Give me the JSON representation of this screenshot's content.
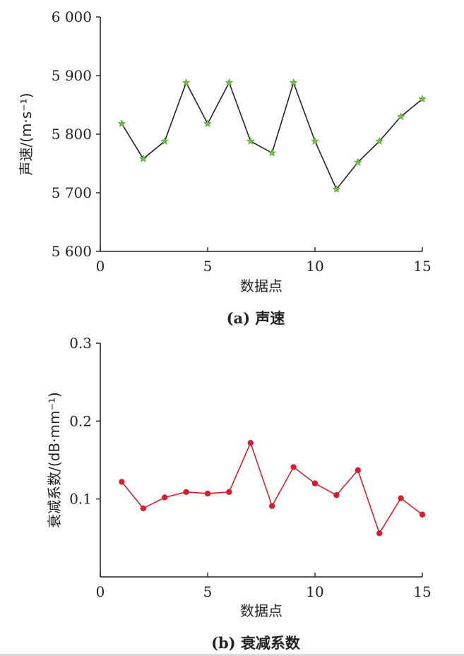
{
  "chart_data": [
    {
      "type": "line",
      "caption": "(a) 声速",
      "xlabel": "数据点",
      "ylabel": "声速/(m·s⁻¹)",
      "xlim": [
        0,
        15
      ],
      "ylim": [
        5600,
        6000
      ],
      "xticks": [
        0,
        5,
        10,
        15
      ],
      "xtick_labels": [
        "0",
        "5",
        "10",
        "15"
      ],
      "yticks": [
        5600,
        5700,
        5800,
        5900,
        6000
      ],
      "ytick_labels": [
        "5 600",
        "5 700",
        "5 800",
        "5 900",
        "6 000"
      ],
      "grid": false,
      "marker": "star",
      "line_color": "#222222",
      "marker_color": "#6cc04a",
      "series": [
        {
          "x": [
            1,
            2,
            3,
            4,
            5,
            6,
            7,
            8,
            9,
            10,
            11,
            12,
            13,
            14,
            15
          ],
          "values": [
            5818,
            5758,
            5788,
            5888,
            5818,
            5888,
            5788,
            5768,
            5888,
            5788,
            5706,
            5752,
            5788,
            5830,
            5860
          ]
        }
      ]
    },
    {
      "type": "line",
      "caption": "(b) 衰减系数",
      "xlabel": "数据点",
      "ylabel": "衰减系数/(dB·mm⁻¹)",
      "xlim": [
        0,
        15
      ],
      "ylim": [
        0,
        0.3
      ],
      "xticks": [
        0,
        5,
        10,
        15
      ],
      "xtick_labels": [
        "0",
        "5",
        "10",
        "15"
      ],
      "yticks": [
        0.1,
        0.2,
        0.3
      ],
      "ytick_labels": [
        "0.1",
        "0.2",
        "0.3"
      ],
      "grid": false,
      "marker": "circle",
      "line_color": "#d4202c",
      "marker_color": "#d4202c",
      "series": [
        {
          "x": [
            1,
            2,
            3,
            4,
            5,
            6,
            7,
            8,
            9,
            10,
            11,
            12,
            13,
            14,
            15
          ],
          "values": [
            0.122,
            0.088,
            0.102,
            0.109,
            0.107,
            0.109,
            0.172,
            0.091,
            0.141,
            0.12,
            0.105,
            0.137,
            0.056,
            0.101,
            0.08
          ]
        }
      ]
    }
  ]
}
